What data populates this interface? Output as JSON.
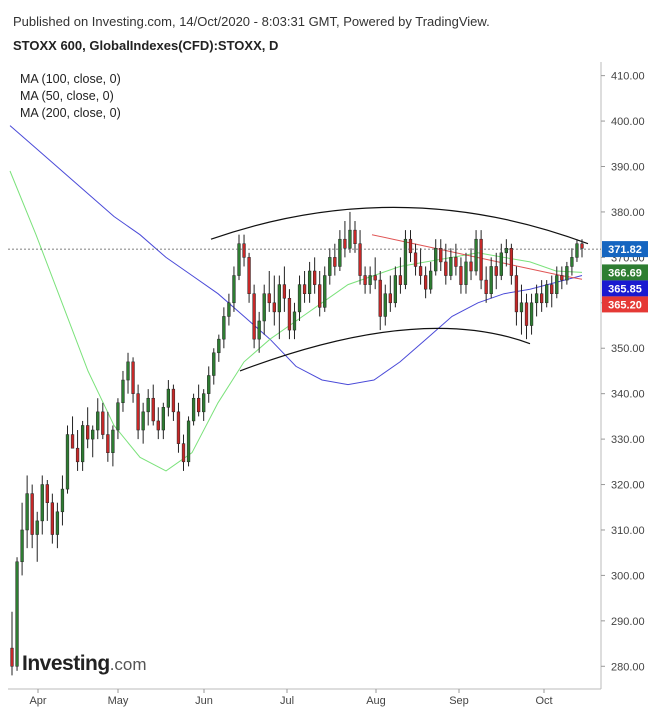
{
  "header": {
    "published_text": "Published on Investing.com, 14/Oct/2020 - 8:03:31 GMT, Powered by TradingView.",
    "symbol_text": "STOXX 600, GlobalIndexes(CFD):STOXX, D"
  },
  "legend": {
    "ma_items": [
      "MA (100, close, 0)",
      "MA (50, close, 0)",
      "MA (200, close, 0)"
    ]
  },
  "logo": {
    "brand": "Investing",
    "suffix": ".com"
  },
  "colors": {
    "up_candle": "#2e7d32",
    "down_candle": "#c62828",
    "ma100": "#4a4ad8",
    "ma50": "#7be27b",
    "ma200": "#e05555",
    "arc": "#111111",
    "last_price_line": "#555555"
  },
  "chart_data": {
    "type": "candlestick",
    "title": "STOXX 600, GlobalIndexes(CFD):STOXX, D",
    "x_ticks": [
      "Apr",
      "May",
      "Jun",
      "Jul",
      "Aug",
      "Sep",
      "Oct"
    ],
    "y_ticks": [
      280,
      290,
      300,
      310,
      320,
      330,
      340,
      350,
      360,
      370,
      380,
      390,
      400,
      410
    ],
    "ylim": [
      275,
      413
    ],
    "price_labels": [
      {
        "value": 371.82,
        "text": "371.82",
        "color": "#1565c0",
        "series": "last price"
      },
      {
        "value": 366.69,
        "text": "366.69",
        "color": "#2e7d32",
        "series": "MA (50, close, 0)"
      },
      {
        "value": 365.85,
        "text": "365.85",
        "color": "#1a1ad0",
        "series": "MA (100, close, 0)"
      },
      {
        "value": 365.2,
        "text": "365.20",
        "color": "#e53935",
        "series": "MA (200, close, 0)"
      }
    ],
    "candles_ohlc": [
      [
        284,
        292,
        278,
        280
      ],
      [
        280,
        304,
        279,
        303
      ],
      [
        303,
        316,
        300,
        310
      ],
      [
        310,
        322,
        306,
        318
      ],
      [
        318,
        320,
        306,
        309
      ],
      [
        309,
        314,
        303,
        312
      ],
      [
        312,
        322,
        309,
        320
      ],
      [
        320,
        321,
        312,
        316
      ],
      [
        316,
        318,
        307,
        309
      ],
      [
        309,
        316,
        306,
        314
      ],
      [
        314,
        322,
        311,
        319
      ],
      [
        319,
        333,
        318,
        331
      ],
      [
        331,
        335,
        328,
        328
      ],
      [
        328,
        332,
        323,
        325
      ],
      [
        325,
        334,
        323,
        333
      ],
      [
        333,
        337,
        328,
        330
      ],
      [
        330,
        333,
        326,
        332
      ],
      [
        332,
        339,
        330,
        336
      ],
      [
        336,
        338,
        330,
        331
      ],
      [
        331,
        336,
        325,
        327
      ],
      [
        327,
        333,
        324,
        332
      ],
      [
        332,
        339,
        330,
        338
      ],
      [
        338,
        345,
        336,
        343
      ],
      [
        343,
        349,
        340,
        347
      ],
      [
        347,
        348,
        338,
        340
      ],
      [
        340,
        342,
        330,
        332
      ],
      [
        332,
        338,
        329,
        336
      ],
      [
        336,
        341,
        333,
        339
      ],
      [
        339,
        342,
        333,
        334
      ],
      [
        334,
        337,
        330,
        332
      ],
      [
        332,
        338,
        330,
        337
      ],
      [
        337,
        343,
        335,
        341
      ],
      [
        341,
        342,
        334,
        336
      ],
      [
        336,
        338,
        327,
        329
      ],
      [
        329,
        331,
        323,
        325
      ],
      [
        325,
        335,
        324,
        334
      ],
      [
        334,
        340,
        333,
        339
      ],
      [
        339,
        342,
        335,
        336
      ],
      [
        336,
        341,
        334,
        340
      ],
      [
        340,
        346,
        338,
        344
      ],
      [
        344,
        350,
        342,
        349
      ],
      [
        349,
        353,
        347,
        352
      ],
      [
        352,
        359,
        350,
        357
      ],
      [
        357,
        362,
        355,
        360
      ],
      [
        360,
        368,
        358,
        366
      ],
      [
        366,
        375,
        365,
        373
      ],
      [
        373,
        375,
        368,
        370
      ],
      [
        370,
        371,
        360,
        362
      ],
      [
        362,
        364,
        350,
        352
      ],
      [
        352,
        358,
        349,
        356
      ],
      [
        356,
        364,
        353,
        362
      ],
      [
        362,
        367,
        358,
        360
      ],
      [
        360,
        366,
        355,
        358
      ],
      [
        358,
        366,
        352,
        364
      ],
      [
        364,
        368,
        358,
        361
      ],
      [
        361,
        363,
        352,
        354
      ],
      [
        354,
        360,
        352,
        358
      ],
      [
        358,
        366,
        356,
        364
      ],
      [
        364,
        367,
        360,
        362
      ],
      [
        362,
        369,
        360,
        367
      ],
      [
        367,
        370,
        362,
        364
      ],
      [
        364,
        367,
        357,
        359
      ],
      [
        359,
        368,
        358,
        366
      ],
      [
        366,
        372,
        364,
        370
      ],
      [
        370,
        373,
        366,
        368
      ],
      [
        368,
        376,
        367,
        374
      ],
      [
        374,
        378,
        370,
        372
      ],
      [
        372,
        380,
        371,
        376
      ],
      [
        376,
        378,
        371,
        373
      ],
      [
        373,
        376,
        364,
        366
      ],
      [
        366,
        368,
        362,
        364
      ],
      [
        364,
        368,
        362,
        366
      ],
      [
        366,
        370,
        363,
        365
      ],
      [
        365,
        367,
        354,
        357
      ],
      [
        357,
        364,
        355,
        362
      ],
      [
        362,
        366,
        358,
        360
      ],
      [
        360,
        368,
        359,
        366
      ],
      [
        366,
        370,
        362,
        364
      ],
      [
        364,
        376,
        363,
        374
      ],
      [
        374,
        376,
        369,
        371
      ],
      [
        371,
        373,
        366,
        368
      ],
      [
        368,
        372,
        364,
        366
      ],
      [
        366,
        368,
        361,
        363
      ],
      [
        363,
        369,
        362,
        367
      ],
      [
        367,
        374,
        366,
        372
      ],
      [
        372,
        374,
        367,
        369
      ],
      [
        369,
        373,
        364,
        366
      ],
      [
        366,
        372,
        365,
        370
      ],
      [
        370,
        373,
        366,
        368
      ],
      [
        368,
        370,
        362,
        364
      ],
      [
        364,
        371,
        362,
        369
      ],
      [
        369,
        372,
        365,
        367
      ],
      [
        367,
        376,
        366,
        374
      ],
      [
        374,
        376,
        363,
        365
      ],
      [
        365,
        368,
        360,
        362
      ],
      [
        362,
        370,
        361,
        368
      ],
      [
        368,
        371,
        363,
        366
      ],
      [
        366,
        373,
        365,
        371
      ],
      [
        371,
        374,
        368,
        372
      ],
      [
        372,
        373,
        364,
        366
      ],
      [
        366,
        368,
        355,
        358
      ],
      [
        358,
        364,
        353,
        360
      ],
      [
        360,
        362,
        352,
        355
      ],
      [
        355,
        362,
        353,
        360
      ],
      [
        360,
        364,
        357,
        362
      ],
      [
        362,
        365,
        358,
        360
      ],
      [
        360,
        365,
        359,
        364
      ],
      [
        364,
        366,
        359,
        362
      ],
      [
        362,
        368,
        361,
        366
      ],
      [
        366,
        368,
        363,
        365
      ],
      [
        365,
        369,
        364,
        368
      ],
      [
        368,
        372,
        366,
        370
      ],
      [
        370,
        374,
        369,
        373
      ],
      [
        373,
        374,
        370,
        372
      ]
    ],
    "ma100": [
      399,
      394,
      389,
      384,
      379,
      375,
      370,
      366,
      362,
      357,
      352,
      346,
      343,
      342,
      343,
      347,
      352,
      357,
      360,
      362,
      363,
      364.5,
      366
    ],
    "ma50": [
      389,
      375,
      360,
      345,
      333,
      326,
      323,
      327,
      338,
      347,
      352,
      356,
      360,
      364,
      366,
      368,
      369,
      370,
      371,
      370,
      369,
      367,
      366.7
    ],
    "ma200": [
      375,
      374,
      373,
      372,
      371,
      370,
      369,
      368,
      367,
      366,
      365.2
    ],
    "arcs": [
      {
        "name": "upper",
        "points": [
          [
            374,
            375
          ],
          [
            381,
            381
          ],
          [
            373,
            371
          ]
        ]
      },
      {
        "name": "lower",
        "points": [
          [
            345,
            345
          ],
          [
            354,
            354
          ],
          [
            351,
            351
          ]
        ]
      }
    ]
  }
}
